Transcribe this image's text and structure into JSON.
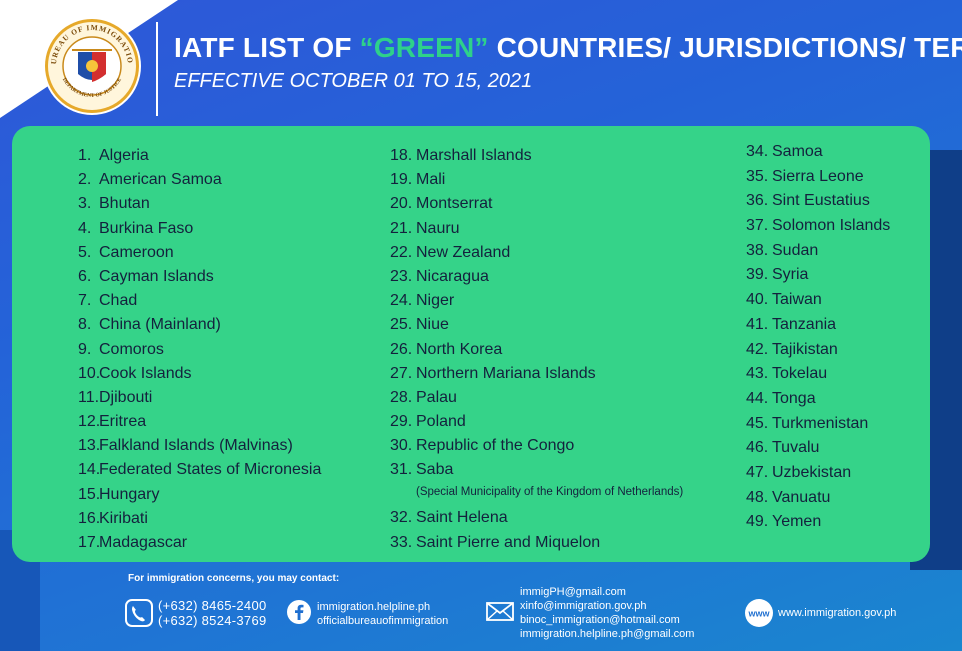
{
  "header": {
    "title_before": "IATF LIST OF ",
    "title_highlight": "“GREEN”",
    "title_after": " COUNTRIES/ JURISDICTIONS/ TERRITORIES",
    "subtitle": "EFFECTIVE OCTOBER 01 TO 15, 2021",
    "seal": {
      "top_text": "BUREAU OF IMMIGRATION",
      "bottom_text": "DEPARTMENT OF JUSTICE",
      "icon": "bureau-of-immigration-seal"
    }
  },
  "colors": {
    "background": "#2463d8",
    "panel": "#35d389",
    "highlight": "#2ed18a",
    "text": "#14213d"
  },
  "countries": {
    "col1": [
      {
        "num": "1.",
        "name": "Algeria"
      },
      {
        "num": "2.",
        "name": "American Samoa"
      },
      {
        "num": "3.",
        "name": "Bhutan"
      },
      {
        "num": "4.",
        "name": "Burkina Faso"
      },
      {
        "num": "5.",
        "name": "Cameroon"
      },
      {
        "num": "6.",
        "name": "Cayman Islands"
      },
      {
        "num": "7.",
        "name": "Chad"
      },
      {
        "num": "8.",
        "name": "China (Mainland)"
      },
      {
        "num": "9.",
        "name": "Comoros"
      },
      {
        "num": "10.",
        "name": "Cook Islands"
      },
      {
        "num": "11.",
        "name": "Djibouti"
      },
      {
        "num": "12.",
        "name": "Eritrea"
      },
      {
        "num": "13.",
        "name": "Falkland Islands (Malvinas)"
      },
      {
        "num": "14.",
        "name": "Federated States of Micronesia"
      },
      {
        "num": "15.",
        "name": "Hungary"
      },
      {
        "num": "16.",
        "name": "Kiribati"
      },
      {
        "num": "17.",
        "name": "Madagascar"
      }
    ],
    "col2": [
      {
        "num": "18.",
        "name": "Marshall Islands"
      },
      {
        "num": "19.",
        "name": "Mali"
      },
      {
        "num": "20.",
        "name": "Montserrat"
      },
      {
        "num": "21.",
        "name": "Nauru"
      },
      {
        "num": "22.",
        "name": "New Zealand"
      },
      {
        "num": "23.",
        "name": "Nicaragua"
      },
      {
        "num": "24.",
        "name": "Niger"
      },
      {
        "num": "25.",
        "name": "Niue"
      },
      {
        "num": "26.",
        "name": "North Korea"
      },
      {
        "num": "27.",
        "name": "Northern Mariana Islands"
      },
      {
        "num": "28.",
        "name": "Palau"
      },
      {
        "num": "29.",
        "name": "Poland"
      },
      {
        "num": "30.",
        "name": "Republic of the Congo"
      },
      {
        "num": "31.",
        "name": "Saba",
        "note": "(Special Municipality of the Kingdom of Netherlands)"
      },
      {
        "num": "32.",
        "name": "Saint Helena"
      },
      {
        "num": "33.",
        "name": "Saint Pierre and Miquelon"
      }
    ],
    "col3": [
      {
        "num": "34.",
        "name": "Samoa"
      },
      {
        "num": "35.",
        "name": "Sierra Leone"
      },
      {
        "num": "36.",
        "name": "Sint Eustatius"
      },
      {
        "num": "37.",
        "name": "Solomon Islands"
      },
      {
        "num": "38.",
        "name": "Sudan"
      },
      {
        "num": "39.",
        "name": "Syria"
      },
      {
        "num": "40.",
        "name": "Taiwan"
      },
      {
        "num": "41.",
        "name": "Tanzania"
      },
      {
        "num": "42.",
        "name": "Tajikistan"
      },
      {
        "num": "43.",
        "name": "Tokelau"
      },
      {
        "num": "44.",
        "name": "Tonga"
      },
      {
        "num": "45.",
        "name": "Turkmenistan"
      },
      {
        "num": "46.",
        "name": "Tuvalu"
      },
      {
        "num": "47.",
        "name": "Uzbekistan"
      },
      {
        "num": "48.",
        "name": "Vanuatu"
      },
      {
        "num": "49.",
        "name": "Yemen"
      }
    ]
  },
  "contact": {
    "label": "For immigration concerns, you may contact:",
    "phone": {
      "icon": "phone-icon",
      "lines": [
        "(+632) 8465-2400",
        "(+632) 8524-3769"
      ]
    },
    "facebook": {
      "icon": "facebook-icon",
      "lines": [
        "immigration.helpline.ph",
        "officialbureauofimmigration"
      ]
    },
    "email": {
      "icon": "mail-icon",
      "lines": [
        "immigPH@gmail.com",
        "xinfo@immigration.gov.ph",
        "binoc_immigration@hotmail.com",
        "immigration.helpline.ph@gmail.com"
      ]
    },
    "web": {
      "icon": "globe-icon",
      "text": "www.immigration.gov.ph"
    }
  }
}
